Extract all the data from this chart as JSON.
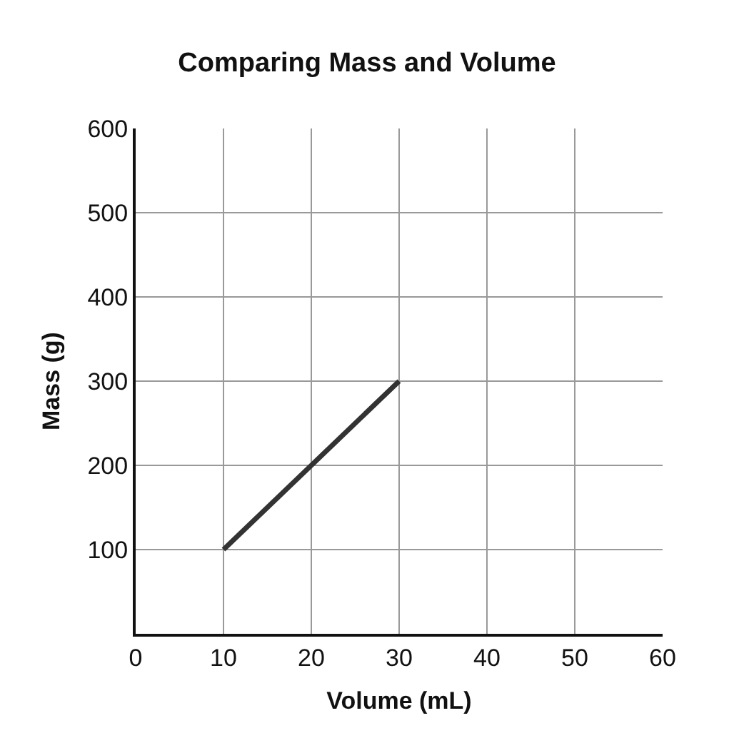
{
  "chart_data": {
    "type": "line",
    "title": "Comparing Mass and Volume",
    "xlabel": "Volume (mL)",
    "ylabel": "Mass (g)",
    "x": [
      10,
      20,
      30
    ],
    "series": [
      {
        "color": "#333333",
        "values": [
          100,
          200,
          300
        ]
      }
    ],
    "xlim": [
      0,
      60
    ],
    "xticks": [
      0,
      10,
      20,
      30,
      40,
      50,
      60
    ],
    "ylim": [
      0,
      600
    ],
    "yticks": [
      {
        "value": 0,
        "label": null
      },
      100,
      200,
      300,
      400,
      500,
      600
    ],
    "grid": true,
    "marker": "none",
    "line_style": "solid"
  }
}
